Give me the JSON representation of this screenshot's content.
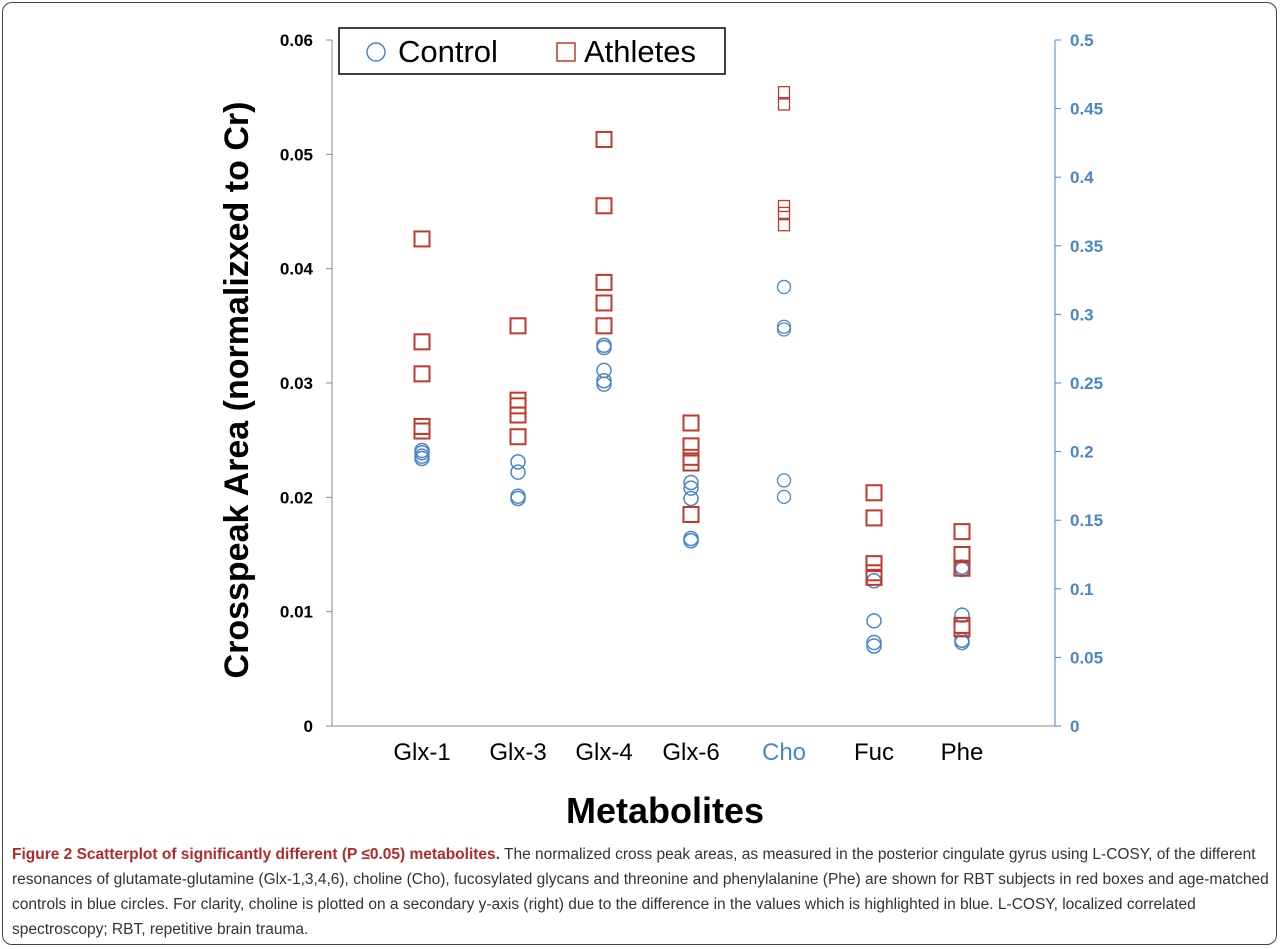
{
  "chart_data": {
    "type": "scatter",
    "xlabel": "Metabolites",
    "ylabel": "Crosspeak Area (normalizxed to Cr)",
    "categories": [
      "Glx-1",
      "Glx-3",
      "Glx-4",
      "Glx-6",
      "Cho",
      "Fuc",
      "Phe"
    ],
    "category_colors": [
      "#000000",
      "#000000",
      "#000000",
      "#000000",
      "#4a86c8",
      "#000000",
      "#000000"
    ],
    "y_left": {
      "ylim": [
        0,
        0.06
      ],
      "ticks": [
        "0",
        "0.01",
        "0.02",
        "0.03",
        "0.04",
        "0.05",
        "0.06"
      ],
      "tick_values": [
        0,
        0.01,
        0.02,
        0.03,
        0.04,
        0.05,
        0.06
      ]
    },
    "y_right": {
      "ylim": [
        0,
        0.5
      ],
      "ticks": [
        "0",
        "0.05",
        "0.1",
        "0.15",
        "0.2",
        "0.25",
        "0.3",
        "0.35",
        "0.4",
        "0.45",
        "0.5"
      ],
      "tick_values": [
        0,
        0.05,
        0.1,
        0.15,
        0.2,
        0.25,
        0.3,
        0.35,
        0.4,
        0.45,
        0.5
      ],
      "color": "#4a86c8"
    },
    "grid": false,
    "legend_position": "top-left",
    "series": [
      {
        "name": "Control",
        "marker": "circle",
        "color": "#4a86c8",
        "points": [
          {
            "category": "Glx-1",
            "values": [
              0.0241,
              0.0239,
              0.0236,
              0.0234
            ]
          },
          {
            "category": "Glx-3",
            "values": [
              0.0231,
              0.0222,
              0.0201,
              0.0199
            ]
          },
          {
            "category": "Glx-4",
            "values": [
              0.0333,
              0.0331,
              0.0311,
              0.0302,
              0.0299
            ]
          },
          {
            "category": "Glx-6",
            "values": [
              0.0213,
              0.0208,
              0.0199,
              0.0164,
              0.0162
            ]
          },
          {
            "category": "Cho",
            "axis": "right",
            "values": [
              0.32,
              0.291,
              0.289,
              0.179,
              0.167
            ]
          },
          {
            "category": "Fuc",
            "values": [
              0.0127,
              0.0092,
              0.0073,
              0.007
            ]
          },
          {
            "category": "Phe",
            "values": [
              0.0139,
              0.0137,
              0.0097,
              0.0075,
              0.0073
            ]
          }
        ]
      },
      {
        "name": "Athletes",
        "marker": "square",
        "color": "#c0392b",
        "points": [
          {
            "category": "Glx-1",
            "values": [
              0.0426,
              0.0336,
              0.0308,
              0.0262,
              0.0258
            ]
          },
          {
            "category": "Glx-3",
            "values": [
              0.035,
              0.0285,
              0.028,
              0.0272,
              0.0253
            ]
          },
          {
            "category": "Glx-4",
            "values": [
              0.0513,
              0.0455,
              0.0388,
              0.037,
              0.035
            ]
          },
          {
            "category": "Glx-6",
            "values": [
              0.0265,
              0.0245,
              0.0235,
              0.023,
              0.0185
            ]
          },
          {
            "category": "Cho",
            "axis": "right",
            "values": [
              0.462,
              0.453,
              0.379,
              0.374,
              0.365
            ]
          },
          {
            "category": "Fuc",
            "values": [
              0.0204,
              0.0182,
              0.0142,
              0.0134,
              0.013
            ]
          },
          {
            "category": "Phe",
            "values": [
              0.017,
              0.015,
              0.0138,
              0.0088,
              0.0085
            ]
          }
        ]
      }
    ]
  },
  "caption": {
    "title": "Figure 2 Scatterplot of significantly different (P ≤0.05) metabolites.",
    "body": " The normalized cross peak areas, as measured in the posterior cingulate gyrus using L-COSY, of the different resonances of glutamate-glutamine (Glx-1,3,4,6), choline (Cho), fucosylated glycans and threonine and phenylalanine (Phe) are shown for RBT subjects in red boxes and age-matched controls in blue circles. For clarity, choline is plotted on a secondary y-axis (right) due to the difference in the values which is highlighted in blue. L-COSY, localized correlated spectroscopy; RBT, repetitive brain trauma."
  }
}
